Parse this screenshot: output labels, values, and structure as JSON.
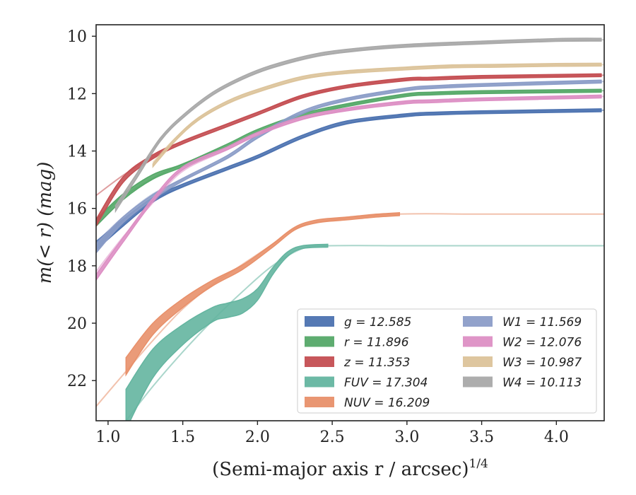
{
  "chart_data": {
    "type": "line",
    "title": "",
    "xlabel": "(Semi-major axis r / arcsec)",
    "xlabel_superscript": "1/4",
    "ylabel": "m(< r) (mag)",
    "xlim": [
      0.92,
      4.32
    ],
    "ylim": [
      23.4,
      9.6
    ],
    "y_inverted": true,
    "grid": false,
    "legend_placement": "lower-right",
    "xticks": [
      1.0,
      1.5,
      2.0,
      2.5,
      3.0,
      3.5,
      4.0
    ],
    "xtick_labels": [
      "1.0",
      "1.5",
      "2.0",
      "2.5",
      "3.0",
      "3.5",
      "4.0"
    ],
    "yticks": [
      10,
      12,
      14,
      16,
      18,
      20,
      22
    ],
    "ytick_labels": [
      "10",
      "12",
      "14",
      "16",
      "18",
      "20",
      "22"
    ],
    "series": [
      {
        "name": "g = 12.585",
        "band": "g",
        "mag": "12.585",
        "color": "#4c72b0",
        "x": [
          0.92,
          1.1,
          1.3,
          1.5,
          1.8,
          2.0,
          2.3,
          2.6,
          3.0,
          3.15,
          3.5,
          4.3
        ],
        "y": [
          17.3,
          16.5,
          15.7,
          15.2,
          14.6,
          14.2,
          13.5,
          13.0,
          12.75,
          12.7,
          12.65,
          12.58
        ],
        "width": [
          0.15,
          0.12,
          0.08,
          0.05,
          0.05,
          0.05,
          0.05,
          0.05,
          0.05,
          0.05,
          0.05,
          0.05
        ],
        "model_x": [
          0.92,
          1.1,
          1.3,
          1.5,
          1.8,
          2.0,
          2.3,
          2.6,
          3.0,
          3.5,
          4.32
        ],
        "model_y": [
          17.5,
          16.4,
          15.7,
          15.25,
          14.65,
          14.25,
          13.55,
          13.05,
          12.75,
          12.65,
          12.58
        ]
      },
      {
        "name": "r = 11.896",
        "band": "r",
        "mag": "11.896",
        "color": "#55a868",
        "x": [
          0.92,
          1.1,
          1.3,
          1.5,
          1.8,
          2.0,
          2.3,
          2.6,
          3.0,
          3.15,
          3.5,
          4.3
        ],
        "y": [
          16.5,
          15.6,
          14.9,
          14.5,
          13.8,
          13.3,
          12.75,
          12.4,
          12.05,
          12.0,
          11.95,
          11.9
        ],
        "width": [
          0.12,
          0.1,
          0.08,
          0.05,
          0.05,
          0.05,
          0.05,
          0.05,
          0.05,
          0.05,
          0.05,
          0.05
        ],
        "model_x": [
          0.92,
          1.1,
          1.3,
          1.5,
          1.8,
          2.0,
          2.3,
          2.6,
          3.0,
          3.5,
          4.32
        ],
        "model_y": [
          16.4,
          15.6,
          14.95,
          14.45,
          13.85,
          13.35,
          12.8,
          12.4,
          12.05,
          11.95,
          11.9
        ]
      },
      {
        "name": "z = 11.353",
        "band": "z",
        "mag": "11.353",
        "color": "#c44e52",
        "x": [
          0.92,
          1.1,
          1.3,
          1.5,
          1.8,
          2.0,
          2.3,
          2.6,
          3.0,
          3.15,
          3.5,
          4.3
        ],
        "y": [
          16.5,
          15.0,
          14.2,
          13.7,
          13.1,
          12.7,
          12.1,
          11.75,
          11.5,
          11.48,
          11.42,
          11.36
        ],
        "width": [
          0.12,
          0.1,
          0.07,
          0.05,
          0.05,
          0.05,
          0.05,
          0.05,
          0.05,
          0.05,
          0.05,
          0.05
        ],
        "model_x": [
          0.92,
          1.1,
          1.3,
          1.5,
          1.8,
          2.0,
          2.3,
          2.6,
          3.0,
          3.5,
          4.32
        ],
        "model_y": [
          15.55,
          14.85,
          14.2,
          13.65,
          13.05,
          12.65,
          12.1,
          11.75,
          11.5,
          11.42,
          11.36
        ]
      },
      {
        "name": "FUV = 17.304",
        "band": "FUV",
        "mag": "17.304",
        "color": "#64b5a0",
        "x": [
          1.12,
          1.3,
          1.5,
          1.7,
          1.8,
          1.9,
          2.0,
          2.1,
          2.2,
          2.3,
          2.47
        ],
        "y": [
          23.0,
          21.4,
          20.4,
          19.7,
          19.55,
          19.4,
          19.0,
          18.2,
          17.6,
          17.35,
          17.3
        ],
        "width": [
          0.7,
          0.5,
          0.35,
          0.25,
          0.25,
          0.25,
          0.2,
          0.12,
          0.08,
          0.05,
          0.05
        ],
        "model_x": [
          1.12,
          1.3,
          1.5,
          1.7,
          1.9,
          2.1,
          2.3,
          2.47,
          3.0,
          3.5,
          4.32
        ],
        "model_y": [
          23.4,
          22.2,
          21.0,
          19.9,
          18.9,
          18.0,
          17.4,
          17.3,
          17.3,
          17.3,
          17.3
        ]
      },
      {
        "name": "NUV = 16.209",
        "band": "NUV",
        "mag": "16.209",
        "color": "#e8906a",
        "x": [
          1.12,
          1.3,
          1.5,
          1.7,
          1.9,
          2.1,
          2.25,
          2.4,
          2.6,
          2.8,
          2.95
        ],
        "y": [
          21.5,
          20.2,
          19.3,
          18.6,
          18.05,
          17.3,
          16.7,
          16.45,
          16.35,
          16.25,
          16.2
        ],
        "width": [
          0.3,
          0.2,
          0.15,
          0.1,
          0.08,
          0.06,
          0.05,
          0.05,
          0.05,
          0.05,
          0.05
        ],
        "model_x": [
          0.92,
          1.1,
          1.3,
          1.5,
          1.7,
          1.9,
          2.1,
          2.25,
          2.5,
          2.95,
          3.5,
          4.32
        ],
        "model_y": [
          22.9,
          21.8,
          20.6,
          19.5,
          18.65,
          17.95,
          17.25,
          16.7,
          16.4,
          16.2,
          16.2,
          16.2
        ]
      },
      {
        "name": "W1 = 11.569",
        "band": "W1",
        "mag": "11.569",
        "color": "#8c9dc8",
        "x": [
          0.92,
          1.1,
          1.3,
          1.5,
          1.8,
          2.0,
          2.3,
          2.6,
          3.0,
          3.15,
          3.5,
          4.3
        ],
        "y": [
          17.4,
          16.4,
          15.6,
          15.0,
          14.2,
          13.5,
          12.65,
          12.2,
          11.85,
          11.78,
          11.7,
          11.58
        ],
        "width": [
          0.15,
          0.1,
          0.08,
          0.05,
          0.05,
          0.05,
          0.05,
          0.05,
          0.05,
          0.05,
          0.05,
          0.05
        ],
        "model_x": [
          0.92,
          1.1,
          1.3,
          1.5,
          1.8,
          2.0,
          2.3,
          2.6,
          3.0,
          3.5,
          4.32
        ],
        "model_y": [
          17.2,
          16.3,
          15.5,
          15.0,
          14.25,
          13.55,
          12.7,
          12.2,
          11.85,
          11.7,
          11.58
        ]
      },
      {
        "name": "W2 = 12.076",
        "band": "W2",
        "mag": "12.076",
        "color": "#dd8fc4",
        "x": [
          0.92,
          1.1,
          1.3,
          1.5,
          1.8,
          2.0,
          2.3,
          2.6,
          3.0,
          3.15,
          3.5,
          4.3
        ],
        "y": [
          18.4,
          17.1,
          15.7,
          14.6,
          13.9,
          13.4,
          12.85,
          12.55,
          12.3,
          12.27,
          12.2,
          12.1
        ],
        "width": [
          0.1,
          0.08,
          0.06,
          0.05,
          0.05,
          0.05,
          0.05,
          0.05,
          0.05,
          0.05,
          0.05,
          0.05
        ],
        "model_x": [
          0.92,
          1.1,
          1.3,
          1.5,
          1.8,
          2.0,
          2.3,
          2.6,
          3.0,
          3.5,
          4.32
        ],
        "model_y": [
          18.2,
          17.0,
          15.8,
          14.7,
          13.95,
          13.45,
          12.9,
          12.55,
          12.3,
          12.2,
          12.1
        ]
      },
      {
        "name": "W3 = 10.987",
        "band": "W3",
        "mag": "10.987",
        "color": "#dcc39a",
        "x": [
          1.3,
          1.45,
          1.6,
          1.8,
          2.0,
          2.3,
          2.6,
          3.0,
          3.3,
          3.6,
          4.0,
          4.3
        ],
        "y": [
          14.5,
          13.6,
          12.9,
          12.3,
          11.9,
          11.45,
          11.25,
          11.12,
          11.05,
          11.03,
          11.0,
          10.99
        ],
        "width": [
          0.05,
          0.05,
          0.05,
          0.05,
          0.05,
          0.05,
          0.05,
          0.05,
          0.05,
          0.05,
          0.05,
          0.05
        ],
        "model_x": [
          1.3,
          1.45,
          1.6,
          1.8,
          2.0,
          2.3,
          2.6,
          3.0,
          3.5,
          4.32
        ],
        "model_y": [
          14.4,
          13.55,
          12.9,
          12.35,
          11.95,
          11.5,
          11.25,
          11.1,
          11.03,
          10.99
        ]
      },
      {
        "name": "W4 = 10.113",
        "band": "W4",
        "mag": "10.113",
        "color": "#a9a9a9",
        "x": [
          1.05,
          1.2,
          1.35,
          1.5,
          1.7,
          1.9,
          2.1,
          2.4,
          2.7,
          3.0,
          3.5,
          4.0,
          4.3
        ],
        "y": [
          16.0,
          14.8,
          13.6,
          12.8,
          12.0,
          11.45,
          11.05,
          10.65,
          10.45,
          10.33,
          10.22,
          10.13,
          10.12
        ],
        "width": [
          0.1,
          0.08,
          0.06,
          0.05,
          0.05,
          0.05,
          0.05,
          0.05,
          0.05,
          0.05,
          0.05,
          0.05,
          0.05
        ],
        "model_x": [
          1.2,
          1.35,
          1.5,
          1.7,
          1.9,
          2.1,
          2.4,
          2.7,
          3.0,
          3.5,
          4.32
        ],
        "model_y": [
          14.7,
          13.6,
          12.85,
          12.05,
          11.5,
          11.1,
          10.7,
          10.47,
          10.33,
          10.22,
          10.12
        ]
      }
    ]
  }
}
